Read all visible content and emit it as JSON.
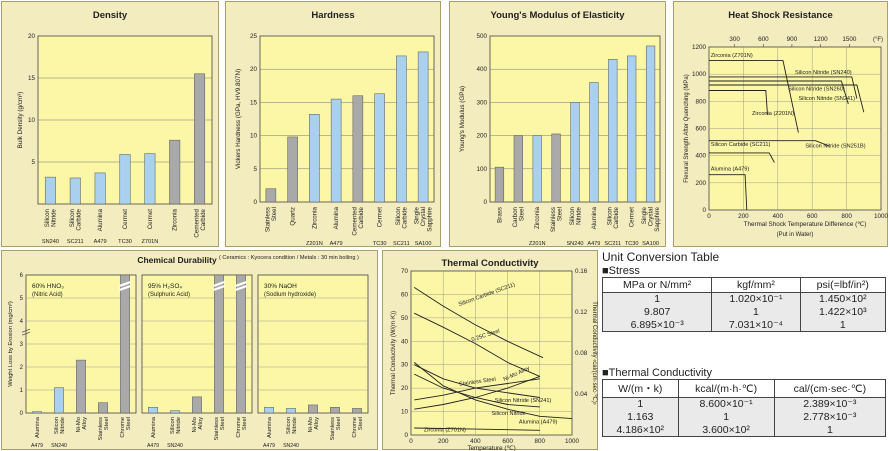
{
  "chart_data": [
    {
      "type": "bar",
      "title": "Density",
      "ylabel": "Bulk Density (g/cm³)",
      "ylim": [
        0,
        20
      ],
      "yticks": [
        5,
        10,
        15,
        20
      ],
      "grid": true,
      "categories": [
        {
          "name": "Silicon Nitride",
          "grade": "SN240"
        },
        {
          "name": "Silicon Carbide",
          "grade": "SC211"
        },
        {
          "name": "Alumina",
          "grade": "A479"
        },
        {
          "name": "Cermet",
          "grade": "TC30"
        },
        {
          "name": "Cermet",
          "grade": "Z701N"
        },
        {
          "name": "Zirconia",
          "grade": ""
        },
        {
          "name": "Cemented Carbide",
          "grade": ""
        }
      ],
      "values": [
        3.2,
        3.1,
        3.7,
        5.9,
        6.0,
        7.6,
        15.5
      ],
      "bar_colors": [
        "#a9d0ee",
        "#a9d0ee",
        "#a9d0ee",
        "#a9d0ee",
        "#a9d0ee",
        "#a9a9a9",
        "#a9a9a9"
      ]
    },
    {
      "type": "bar",
      "title": "Hardness",
      "ylabel": "Vickers Hardness (GPa, HV9.807N)",
      "ylim": [
        0,
        25
      ],
      "yticks": [
        0,
        5,
        10,
        15,
        20,
        25
      ],
      "grid": true,
      "categories": [
        {
          "name": "Stainless Steel",
          "grade": ""
        },
        {
          "name": "Quartz",
          "grade": ""
        },
        {
          "name": "Zirconia",
          "grade": "Z201N"
        },
        {
          "name": "Alumina",
          "grade": "A479"
        },
        {
          "name": "Cemented Carbide",
          "grade": ""
        },
        {
          "name": "Cermet",
          "grade": "TC30"
        },
        {
          "name": "Silicon Carbide",
          "grade": "SC211"
        },
        {
          "name": "Single Crystal Sapphire",
          "grade": "SA100"
        }
      ],
      "values": [
        2.0,
        9.8,
        13.2,
        15.5,
        16.0,
        16.3,
        22.0,
        22.6
      ],
      "bar_colors": [
        "#a9a9a9",
        "#a9a9a9",
        "#a9d0ee",
        "#a9d0ee",
        "#a9a9a9",
        "#a9d0ee",
        "#a9d0ee",
        "#a9d0ee"
      ]
    },
    {
      "type": "bar",
      "title": "Young's Modulus of Elasticity",
      "ylabel": "Young's Modulus (GPa)",
      "ylim": [
        0,
        500
      ],
      "yticks": [
        0,
        100,
        200,
        300,
        400,
        500
      ],
      "grid": true,
      "categories": [
        {
          "name": "Brass",
          "grade": ""
        },
        {
          "name": "Carbon Steel",
          "grade": ""
        },
        {
          "name": "Zirconia",
          "grade": "Z201N"
        },
        {
          "name": "Stainless Steel",
          "grade": ""
        },
        {
          "name": "Silicon Nitride",
          "grade": "SN240"
        },
        {
          "name": "Alumina",
          "grade": "A479"
        },
        {
          "name": "Silicon Carbide",
          "grade": "SC211"
        },
        {
          "name": "Cermet",
          "grade": "TC30"
        },
        {
          "name": "Single Crystal Sapphire",
          "grade": "SA100"
        }
      ],
      "values": [
        105,
        200,
        200,
        205,
        300,
        360,
        430,
        440,
        470
      ],
      "bar_colors": [
        "#a9a9a9",
        "#a9a9a9",
        "#a9d0ee",
        "#a9a9a9",
        "#a9d0ee",
        "#a9d0ee",
        "#a9d0ee",
        "#a9d0ee",
        "#a9d0ee"
      ]
    },
    {
      "type": "line",
      "title": "Heat Shock Resistance",
      "ylabel": "Flexural Strength After Quenching (MPa)",
      "xlabel": "Thermal Shock Temperature Difference (℃)",
      "xlabel_note": "(Put in Water)",
      "top_axis_unit": "(°F)",
      "xlim": [
        0,
        1000
      ],
      "ylim": [
        0,
        1200
      ],
      "xticks": [
        0,
        200,
        400,
        600,
        800,
        1000
      ],
      "yticks": [
        0,
        200,
        400,
        600,
        800,
        1000,
        1200
      ],
      "top_ticks": [
        "300",
        "600",
        "900",
        "1200",
        "1500"
      ],
      "top_tick_positions_c": [
        149,
        316,
        482,
        649,
        816
      ],
      "series": [
        {
          "name": "Zirconia (Z701N)",
          "points": [
            [
              0,
              1100
            ],
            [
              430,
              1100
            ],
            [
              520,
              570
            ]
          ]
        },
        {
          "name": "Silicon Nitride (SN240)",
          "points": [
            [
              0,
              980
            ],
            [
              830,
              980
            ],
            [
              860,
              820
            ]
          ]
        },
        {
          "name": "Silicon Nitride (SN260)",
          "points": [
            [
              0,
              950
            ],
            [
              770,
              950
            ],
            [
              810,
              780
            ]
          ]
        },
        {
          "name": "Silicon Nitride (SN241)",
          "points": [
            [
              0,
              920
            ],
            [
              860,
              920
            ],
            [
              900,
              720
            ]
          ]
        },
        {
          "name": "Zirconia (Z201N)",
          "points": [
            [
              0,
              880
            ],
            [
              330,
              880
            ],
            [
              340,
              700
            ]
          ]
        },
        {
          "name": "Silicon Nitride (SN251B)",
          "points": [
            [
              0,
              510
            ],
            [
              620,
              510
            ],
            [
              700,
              470
            ]
          ]
        },
        {
          "name": "Silicon Carbide (SC211)",
          "points": [
            [
              0,
              420
            ],
            [
              350,
              420
            ],
            [
              380,
              350
            ]
          ]
        },
        {
          "name": "Alumina (A479)",
          "points": [
            [
              0,
              260
            ],
            [
              210,
              260
            ],
            [
              220,
              0
            ]
          ]
        }
      ]
    },
    {
      "type": "bar",
      "title": "Chemical Durability",
      "note": "( Ceramics : Kyocera condition / Metals : 30 min boiling )",
      "ylabel": "Weight Loss by Erosion (mg/cm²)",
      "yticks": [
        0,
        1,
        2,
        3,
        4,
        5,
        6
      ],
      "ylim": [
        0,
        6
      ],
      "axis_break": true,
      "groups": [
        {
          "label": "60%  HNO₃",
          "sublabel": "(Nitric Acid)",
          "categories": [
            {
              "name": "Alumina",
              "grade": "A479"
            },
            {
              "name": "Silicon Nitride",
              "grade": "SN240"
            },
            {
              "name": "Ni-Mo Alloy",
              "grade": ""
            },
            {
              "name": "Stainless Steel",
              "grade": ""
            },
            {
              "name": "Chrome Steel",
              "grade": ""
            }
          ],
          "values": [
            0.06,
            1.1,
            2.3,
            0.45,
            6.0
          ],
          "broken": [
            false,
            false,
            false,
            false,
            true
          ],
          "bar_colors": [
            "#a9d0ee",
            "#a9d0ee",
            "#a9a9a9",
            "#a9a9a9",
            "#a9a9a9"
          ]
        },
        {
          "label": "95%  H₂SO₄",
          "sublabel": "(Sulphuric Acid)",
          "categories": [
            {
              "name": "Alumina",
              "grade": "A479"
            },
            {
              "name": "Silicon Nitride",
              "grade": "SN240"
            },
            {
              "name": "Ni-Mo Alloy",
              "grade": ""
            },
            {
              "name": "Stainless Steel",
              "grade": ""
            },
            {
              "name": "Chrome Steel",
              "grade": ""
            }
          ],
          "values": [
            0.25,
            0.1,
            0.7,
            5.0,
            6.0
          ],
          "broken": [
            false,
            false,
            false,
            true,
            true
          ],
          "bar_colors": [
            "#a9d0ee",
            "#a9d0ee",
            "#a9a9a9",
            "#a9a9a9",
            "#a9a9a9"
          ]
        },
        {
          "label": "30%  NaOH",
          "sublabel": "(Sodium hydroxide)",
          "categories": [
            {
              "name": "Alumina",
              "grade": "A479"
            },
            {
              "name": "Silicon Nitride",
              "grade": "SN240"
            },
            {
              "name": "Ni-Mo Alloy",
              "grade": ""
            },
            {
              "name": "Stainless Steel",
              "grade": ""
            },
            {
              "name": "Chrome Steel",
              "grade": ""
            }
          ],
          "values": [
            0.25,
            0.2,
            0.35,
            0.25,
            0.2
          ],
          "broken": [
            false,
            false,
            false,
            false,
            false
          ],
          "bar_colors": [
            "#a9d0ee",
            "#a9d0ee",
            "#a9a9a9",
            "#a9a9a9",
            "#a9a9a9"
          ]
        }
      ]
    },
    {
      "type": "line",
      "title": "Thermal Conductivity",
      "ylabel": "Thermal Conductivity (W/(m·K))",
      "ylabel2": "Thermal Conductivity ‹cal/(cm·sec·℃)›",
      "xlabel": "Temperature (℃)",
      "xlim": [
        0,
        1000
      ],
      "ylim": [
        0,
        70
      ],
      "ylim2": [
        0,
        0.16
      ],
      "xticks": [
        0,
        200,
        400,
        600,
        800,
        1000
      ],
      "yticks": [
        0,
        10,
        20,
        30,
        40,
        50,
        60,
        70
      ],
      "yticks2": [
        "0.04",
        "0.08",
        "0.12",
        "0.16"
      ],
      "yticks2_values": [
        0.04,
        0.08,
        0.12,
        0.16
      ],
      "series": [
        {
          "name": "Silicon Carbide (SC211)",
          "points": [
            [
              20,
              63
            ],
            [
              200,
              55
            ],
            [
              400,
              47
            ],
            [
              600,
              40
            ],
            [
              820,
              33
            ]
          ]
        },
        {
          "name": "0.25C Steel",
          "points": [
            [
              20,
              52
            ],
            [
              200,
              46
            ],
            [
              400,
              39
            ],
            [
              600,
              31
            ],
            [
              800,
              25
            ]
          ]
        },
        {
          "name": "Stainless Steel",
          "points": [
            [
              20,
              15
            ],
            [
              200,
              17
            ],
            [
              400,
              20
            ],
            [
              600,
              22
            ],
            [
              800,
              24
            ]
          ]
        },
        {
          "name": "Ni-Mo Alloy",
          "points": [
            [
              20,
              11
            ],
            [
              200,
              13
            ],
            [
              400,
              16
            ],
            [
              600,
              20
            ],
            [
              800,
              25
            ]
          ]
        },
        {
          "name": "Silicon Nitride (SN241)",
          "points": [
            [
              20,
              30
            ],
            [
              200,
              24
            ],
            [
              400,
              20
            ],
            [
              600,
              18
            ],
            [
              800,
              16
            ]
          ]
        },
        {
          "name": "Silicon Nitride",
          "points": [
            [
              20,
              26
            ],
            [
              200,
              20
            ],
            [
              400,
              16
            ],
            [
              600,
              13
            ],
            [
              800,
              12
            ]
          ]
        },
        {
          "name": "Alumina (A479)",
          "points": [
            [
              20,
              31
            ],
            [
              200,
              21
            ],
            [
              400,
              15
            ],
            [
              600,
              11
            ],
            [
              800,
              8
            ],
            [
              1000,
              7
            ]
          ]
        },
        {
          "name": "Zirconia (Z701N)",
          "points": [
            [
              20,
              3
            ],
            [
              400,
              2.5
            ],
            [
              800,
              2
            ]
          ]
        }
      ]
    }
  ],
  "unit_table": {
    "title": "Unit Conversion Table",
    "stress": {
      "heading": "■Stress",
      "headers": [
        "MPa or N/mm²",
        "kgf/mm²",
        "psi(=lbf/in²)"
      ],
      "rows": [
        [
          "1",
          "1.020×10⁻¹",
          "1.450×10²"
        ],
        [
          "9.807",
          "1",
          "1.422×10³"
        ],
        [
          "6.895×10⁻³",
          "7.031×10⁻⁴",
          "1"
        ]
      ]
    },
    "thermal": {
      "heading": "■Thermal Conductivity",
      "headers": [
        "W/(m・k)",
        "kcal/(m·h·℃)",
        "cal/(cm·sec·℃)"
      ],
      "rows": [
        [
          "1",
          "8.600×10⁻¹",
          "2.389×10⁻³"
        ],
        [
          "1.163",
          "1",
          "2.778×10⁻³"
        ],
        [
          "4.186×10²",
          "3.600×10²",
          "1"
        ]
      ]
    }
  },
  "colors": {
    "panel_bg": "#f3ecbf",
    "plot_bg": "#fbf7a6",
    "ceramic_bar": "#a9d0ee",
    "metal_bar": "#a9a9a9",
    "table_bg": "#eaeaea"
  }
}
